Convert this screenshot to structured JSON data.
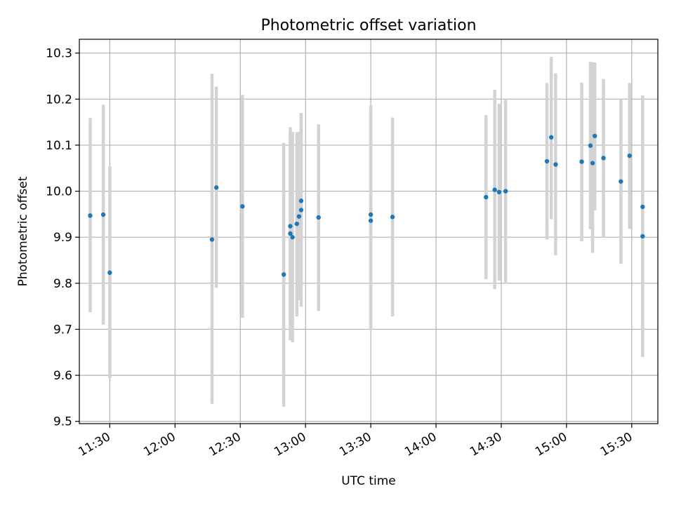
{
  "chart_data": {
    "type": "scatter",
    "title": "Photometric offset variation",
    "xlabel": "UTC time",
    "ylabel": "Photometric offset",
    "xlim": [
      "11:16",
      "15:42"
    ],
    "ylim": [
      9.495,
      10.33
    ],
    "xticks": [
      "11:30",
      "12:00",
      "12:30",
      "13:00",
      "13:30",
      "14:00",
      "14:30",
      "15:00",
      "15:30"
    ],
    "yticks": [
      "9.5",
      "9.6",
      "9.7",
      "9.8",
      "9.9",
      "10.0",
      "10.1",
      "10.2",
      "10.3"
    ],
    "grid": true,
    "colors": {
      "point": "#1f77b4",
      "errorbar": "#d3d3d3",
      "grid": "#b0b0b0"
    },
    "series": [
      {
        "points": [
          {
            "x": "11:21",
            "y": 9.947,
            "lo": 9.737,
            "hi": 10.159
          },
          {
            "x": "11:27",
            "y": 9.949,
            "lo": 9.71,
            "hi": 10.188
          },
          {
            "x": "11:30",
            "y": 9.823,
            "lo": 9.594,
            "hi": 10.054
          },
          {
            "x": "12:17",
            "y": 9.895,
            "lo": 9.538,
            "hi": 10.255
          },
          {
            "x": "12:19",
            "y": 10.008,
            "lo": 9.79,
            "hi": 10.227
          },
          {
            "x": "12:31",
            "y": 9.967,
            "lo": 9.725,
            "hi": 10.209
          },
          {
            "x": "12:50",
            "y": 9.819,
            "lo": 9.532,
            "hi": 10.105
          },
          {
            "x": "12:53",
            "y": 9.924,
            "lo": 9.72,
            "hi": 10.128
          },
          {
            "x": "12:53",
            "y": 9.908,
            "lo": 9.676,
            "hi": 10.139
          },
          {
            "x": "12:54",
            "y": 9.9,
            "lo": 9.672,
            "hi": 10.129
          },
          {
            "x": "12:56",
            "y": 9.929,
            "lo": 9.728,
            "hi": 10.128
          },
          {
            "x": "12:57",
            "y": 9.945,
            "lo": 9.763,
            "hi": 10.129
          },
          {
            "x": "12:58",
            "y": 9.979,
            "lo": 9.79,
            "hi": 10.17
          },
          {
            "x": "12:58",
            "y": 9.959,
            "lo": 9.749,
            "hi": 10.168
          },
          {
            "x": "13:06",
            "y": 9.943,
            "lo": 9.74,
            "hi": 10.145
          },
          {
            "x": "13:30",
            "y": 9.949,
            "lo": 9.712,
            "hi": 10.186
          },
          {
            "x": "13:30",
            "y": 9.936,
            "lo": 9.698,
            "hi": 10.175
          },
          {
            "x": "13:40",
            "y": 9.944,
            "lo": 9.728,
            "hi": 10.16
          },
          {
            "x": "14:23",
            "y": 9.987,
            "lo": 9.809,
            "hi": 10.165
          },
          {
            "x": "14:27",
            "y": 10.003,
            "lo": 9.787,
            "hi": 10.22
          },
          {
            "x": "14:29",
            "y": 9.998,
            "lo": 9.806,
            "hi": 10.19
          },
          {
            "x": "14:32",
            "y": 10.0,
            "lo": 9.8,
            "hi": 10.2
          },
          {
            "x": "14:51",
            "y": 10.065,
            "lo": 9.895,
            "hi": 10.235
          },
          {
            "x": "14:53",
            "y": 10.117,
            "lo": 9.939,
            "hi": 10.292
          },
          {
            "x": "14:55",
            "y": 10.058,
            "lo": 9.861,
            "hi": 10.256
          },
          {
            "x": "15:07",
            "y": 10.064,
            "lo": 9.891,
            "hi": 10.236
          },
          {
            "x": "15:11",
            "y": 10.099,
            "lo": 9.917,
            "hi": 10.281
          },
          {
            "x": "15:12",
            "y": 10.061,
            "lo": 9.866,
            "hi": 10.28
          },
          {
            "x": "15:13",
            "y": 10.12,
            "lo": 9.958,
            "hi": 10.28
          },
          {
            "x": "15:17",
            "y": 10.072,
            "lo": 9.9,
            "hi": 10.244
          },
          {
            "x": "15:25",
            "y": 10.021,
            "lo": 9.842,
            "hi": 10.2
          },
          {
            "x": "15:29",
            "y": 10.077,
            "lo": 9.918,
            "hi": 10.235
          },
          {
            "x": "15:35",
            "y": 9.966,
            "lo": 9.722,
            "hi": 10.208
          },
          {
            "x": "15:35",
            "y": 9.902,
            "lo": 9.64,
            "hi": 10.165
          }
        ]
      }
    ]
  }
}
